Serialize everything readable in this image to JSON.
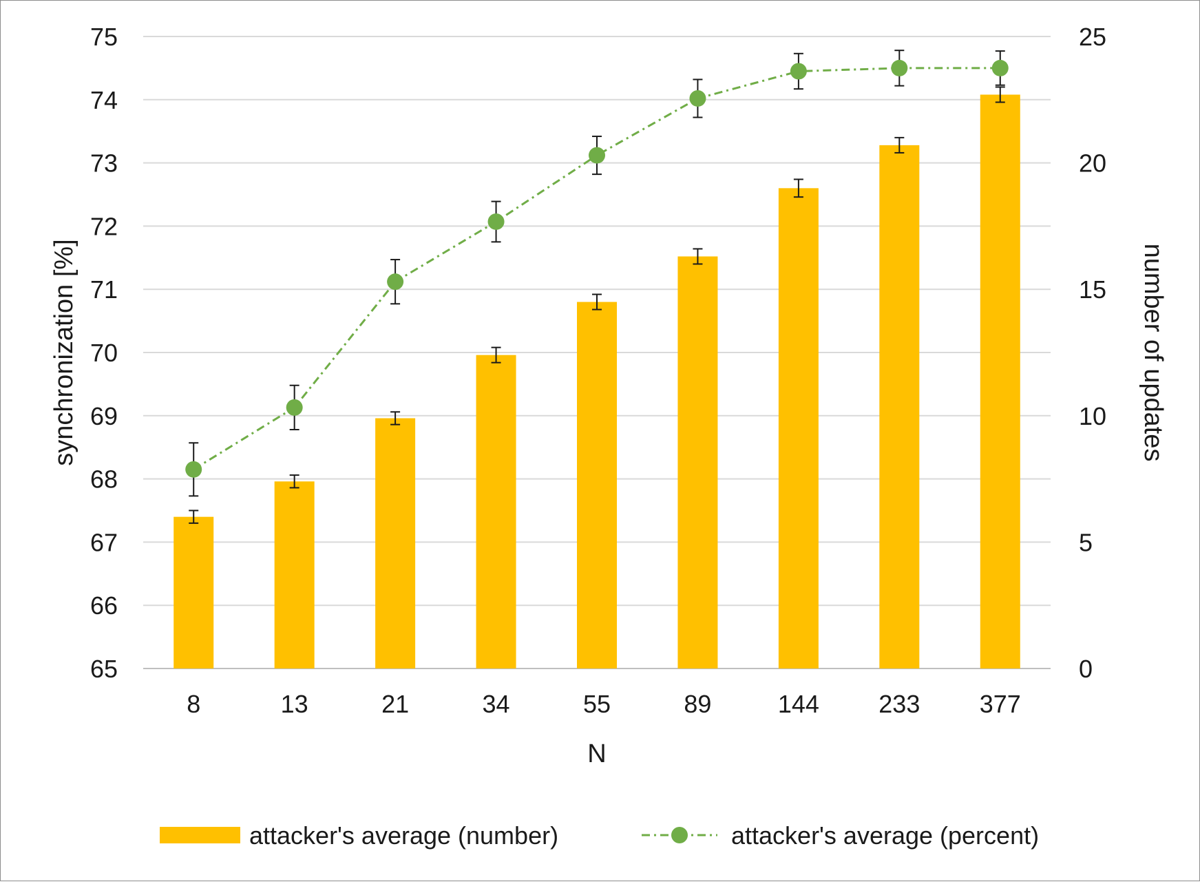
{
  "chart_data": {
    "type": "bar",
    "categories": [
      "8",
      "13",
      "21",
      "34",
      "55",
      "89",
      "144",
      "233",
      "377"
    ],
    "xlabel": "N",
    "ylabel_left": "synchronization [%]",
    "ylabel_right": "number of updates",
    "ylim_left": [
      65,
      75
    ],
    "ylim_right": [
      0,
      25
    ],
    "yticks_left": [
      "65",
      "66",
      "67",
      "68",
      "69",
      "70",
      "71",
      "72",
      "73",
      "74",
      "75"
    ],
    "yticks_right": [
      "0",
      "5",
      "10",
      "15",
      "20",
      "25"
    ],
    "grid": true,
    "legend_position": "bottom",
    "series": [
      {
        "name": "attacker's average (number)",
        "kind": "bar",
        "axis": "right",
        "color": "#FFC000",
        "values": [
          6.0,
          7.4,
          9.9,
          12.4,
          14.5,
          16.3,
          19.0,
          20.7,
          22.7
        ],
        "errors": [
          0.25,
          0.25,
          0.25,
          0.3,
          0.3,
          0.3,
          0.35,
          0.3,
          0.3
        ]
      },
      {
        "name": "attacker's average (percent)",
        "kind": "line",
        "axis": "left",
        "color": "#70AD47",
        "line_style": "dash-dot",
        "marker": "circle",
        "values": [
          68.15,
          69.13,
          71.12,
          72.07,
          73.12,
          74.02,
          74.45,
          74.5,
          74.5
        ],
        "errors": [
          0.42,
          0.35,
          0.35,
          0.32,
          0.3,
          0.3,
          0.28,
          0.28,
          0.27
        ]
      }
    ]
  }
}
